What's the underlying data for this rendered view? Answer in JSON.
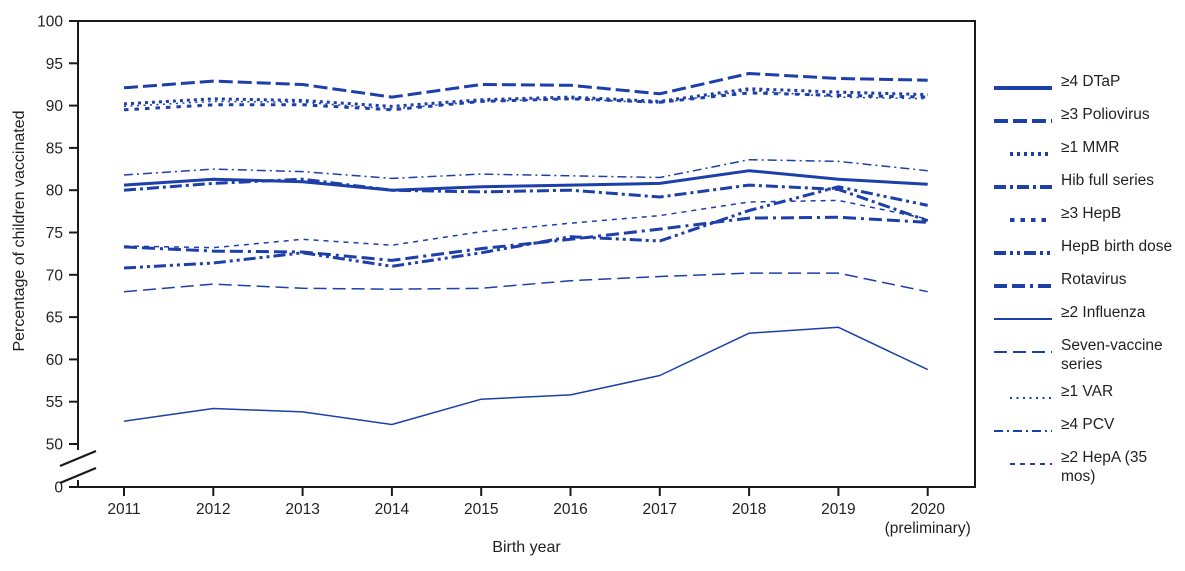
{
  "colors": {
    "line": "#1c3fa9",
    "axis": "#1a1a1a",
    "text": "#231f20",
    "background": "#ffffff"
  },
  "chart_data": {
    "type": "line",
    "title": "",
    "xlabel": "Birth year",
    "ylabel": "Percentage of children vaccinated",
    "x_tick_labels": [
      "2011",
      "2012",
      "2013",
      "2014",
      "2015",
      "2016",
      "2017",
      "2018",
      "2019",
      "2020"
    ],
    "x_note_label": "(preliminary)",
    "x_note_index": 9,
    "y_ticks": [
      100,
      95,
      90,
      85,
      80,
      75,
      70,
      65,
      60,
      55,
      50,
      0
    ],
    "ylim": [
      50,
      100
    ],
    "axis_break": true,
    "grid": false,
    "legend_position": "right",
    "series": [
      {
        "name": "≥4 DTaP",
        "weight": "thick",
        "style": "solid",
        "dash": "",
        "values": [
          80.6,
          81.3,
          81.0,
          80.0,
          80.4,
          80.6,
          80.8,
          82.3,
          81.3,
          80.7
        ]
      },
      {
        "name": "≥3 Poliovirus",
        "weight": "thick",
        "style": "dash",
        "dash": "14 5",
        "values": [
          92.1,
          92.9,
          92.5,
          91.0,
          92.5,
          92.4,
          91.4,
          93.8,
          93.2,
          93.0
        ]
      },
      {
        "name": "≥1 MMR",
        "weight": "thick",
        "style": "dot",
        "dash": "3 4",
        "values": [
          90.2,
          90.8,
          90.6,
          89.9,
          90.7,
          91.0,
          90.5,
          92.0,
          91.6,
          91.3
        ]
      },
      {
        "name": "Hib full series",
        "weight": "thick",
        "style": "dashdot",
        "dash": "12 4 3 4",
        "values": [
          80.0,
          80.8,
          81.3,
          80.0,
          79.8,
          80.0,
          79.2,
          80.6,
          80.1,
          76.4
        ]
      },
      {
        "name": "≥3 HepB",
        "weight": "thick",
        "style": "squaredot",
        "dash": "4.5 6",
        "values": [
          89.5,
          90.1,
          90.1,
          89.5,
          90.5,
          90.8,
          90.4,
          91.5,
          91.2,
          91.0
        ]
      },
      {
        "name": "HepB birth dose",
        "weight": "thick",
        "style": "dashdotdot",
        "dash": "12 4 3 4 3 4",
        "values": [
          70.8,
          71.4,
          72.6,
          71.0,
          72.6,
          74.5,
          74.0,
          77.6,
          80.4,
          78.2
        ]
      },
      {
        "name": "Rotavirus",
        "weight": "thick",
        "style": "longdashdot",
        "dash": "13 5 13 5 3 5",
        "values": [
          73.3,
          72.8,
          72.7,
          71.7,
          73.1,
          74.2,
          75.4,
          76.7,
          76.8,
          76.2
        ]
      },
      {
        "name": "≥2 Influenza",
        "weight": "thin",
        "style": "solid",
        "dash": "",
        "values": [
          52.7,
          54.2,
          53.8,
          52.3,
          55.3,
          55.8,
          58.1,
          63.1,
          63.8,
          58.8
        ]
      },
      {
        "name": "Seven-vaccine series",
        "weight": "thin",
        "style": "dash",
        "dash": "13 6",
        "values": [
          68.0,
          68.9,
          68.4,
          68.3,
          68.4,
          69.3,
          69.8,
          70.2,
          70.2,
          68.0
        ]
      },
      {
        "name": "≥1 VAR",
        "weight": "thin",
        "style": "dot",
        "dash": "2 4.5",
        "values": [
          89.9,
          90.5,
          90.4,
          89.6,
          90.5,
          90.8,
          90.3,
          91.8,
          91.0,
          90.8
        ]
      },
      {
        "name": "≥4 PCV",
        "weight": "thin",
        "style": "dashdot",
        "dash": "9 4 2 4",
        "values": [
          81.8,
          82.5,
          82.2,
          81.4,
          81.9,
          81.7,
          81.5,
          83.6,
          83.4,
          82.3
        ]
      },
      {
        "name": "≥2 HepA (35 mos)",
        "weight": "thin",
        "style": "shortdash",
        "dash": "5 5",
        "values": [
          73.4,
          73.2,
          74.2,
          73.5,
          75.1,
          76.1,
          77.0,
          78.6,
          78.8,
          76.6
        ]
      }
    ]
  }
}
